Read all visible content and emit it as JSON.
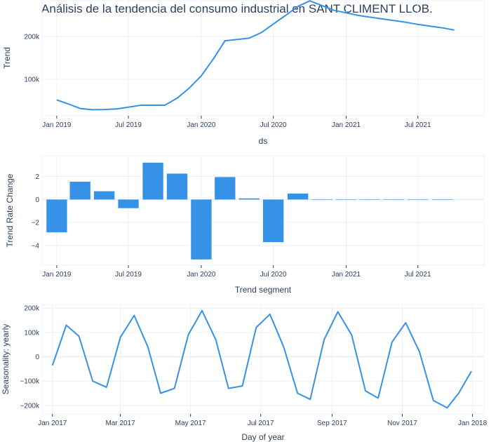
{
  "title": "Análisis de la tendencia del consumo industrial en SANT CLIMENT LLOB.",
  "colors": {
    "line": "#3592e6",
    "bar": "#3592e6",
    "text": "#2a3f5f",
    "grid": "#ebf0f8"
  },
  "chart_data": [
    {
      "type": "line",
      "name": "trend",
      "xlabel": "ds",
      "ylabel": "Trend",
      "x_type": "date",
      "xlim": [
        "2018-11-25",
        "2021-12-15"
      ],
      "ylim": [
        15000,
        285000
      ],
      "x_ticks": [
        {
          "value": "2019-01-01",
          "label": "Jan 2019"
        },
        {
          "value": "2019-07-01",
          "label": "Jul 2019"
        },
        {
          "value": "2020-01-01",
          "label": "Jan 2020"
        },
        {
          "value": "2020-07-01",
          "label": "Jul 2020"
        },
        {
          "value": "2021-01-01",
          "label": "Jan 2021"
        },
        {
          "value": "2021-07-01",
          "label": "Jul 2021"
        }
      ],
      "y_ticks": [
        {
          "value": 100000,
          "label": "100k"
        },
        {
          "value": 200000,
          "label": "200k"
        }
      ],
      "x": [
        "2019-01-01",
        "2019-02-01",
        "2019-03-01",
        "2019-04-01",
        "2019-05-01",
        "2019-06-01",
        "2019-07-01",
        "2019-08-01",
        "2019-09-01",
        "2019-10-01",
        "2019-11-01",
        "2019-12-01",
        "2020-01-01",
        "2020-02-01",
        "2020-03-01",
        "2020-04-01",
        "2020-05-01",
        "2020-06-01",
        "2020-07-01",
        "2020-08-01",
        "2020-09-01",
        "2020-10-01",
        "2020-11-01",
        "2020-12-01",
        "2021-01-01",
        "2021-02-01",
        "2021-03-01",
        "2021-04-01",
        "2021-05-01",
        "2021-06-01",
        "2021-07-01",
        "2021-08-01",
        "2021-09-01",
        "2021-10-01"
      ],
      "y": [
        52000,
        42000,
        32000,
        29000,
        29500,
        31000,
        35000,
        39500,
        39500,
        39500,
        56000,
        79000,
        108000,
        148000,
        190000,
        193000,
        196000,
        209000,
        229000,
        249000,
        270000,
        283000,
        272000,
        261000,
        255000,
        249000,
        245000,
        241000,
        237000,
        233000,
        228000,
        224000,
        220000,
        215000
      ]
    },
    {
      "type": "bar",
      "name": "trend rate change",
      "xlabel": "Trend segment",
      "ylabel": "Trend Rate Change",
      "x_type": "date",
      "xlim": [
        "2018-11-25",
        "2021-12-15"
      ],
      "ylim": [
        -5.7,
        3.8
      ],
      "x_ticks": [
        {
          "value": "2019-01-01",
          "label": "Jan 2019"
        },
        {
          "value": "2019-07-01",
          "label": "Jul 2019"
        },
        {
          "value": "2020-01-01",
          "label": "Jan 2020"
        },
        {
          "value": "2020-07-01",
          "label": "Jul 2020"
        },
        {
          "value": "2021-01-01",
          "label": "Jan 2021"
        },
        {
          "value": "2021-07-01",
          "label": "Jul 2021"
        }
      ],
      "y_ticks": [
        {
          "value": 2,
          "label": "2"
        },
        {
          "value": 0,
          "label": "0"
        },
        {
          "value": -2,
          "label": "−2"
        },
        {
          "value": -4,
          "label": "−4"
        }
      ],
      "bar_width_days": 52,
      "x": [
        "2019-01-01",
        "2019-03-01",
        "2019-05-01",
        "2019-07-01",
        "2019-09-01",
        "2019-11-01",
        "2020-01-01",
        "2020-03-01",
        "2020-05-01",
        "2020-07-01",
        "2020-09-01",
        "2020-11-01",
        "2021-01-01",
        "2021-03-01",
        "2021-05-01",
        "2021-07-01",
        "2021-09-01"
      ],
      "y": [
        -2.85,
        1.55,
        0.72,
        -0.75,
        3.2,
        2.25,
        -5.2,
        1.95,
        0.1,
        -3.7,
        0.52,
        0,
        0,
        0,
        0,
        0,
        0
      ]
    },
    {
      "type": "line",
      "name": "yearly seasonality",
      "xlabel": "Day of year",
      "ylabel": "Seasonality: yearly",
      "x_type": "date",
      "xlim": [
        "2016-12-23",
        "2018-01-11"
      ],
      "ylim": [
        -235000,
        215000
      ],
      "x_ticks": [
        {
          "value": "2017-01-01",
          "label": "Jan 2017"
        },
        {
          "value": "2017-03-01",
          "label": "Mar 2017"
        },
        {
          "value": "2017-05-01",
          "label": "May 2017"
        },
        {
          "value": "2017-07-01",
          "label": "Jul 2017"
        },
        {
          "value": "2017-09-01",
          "label": "Sep 2017"
        },
        {
          "value": "2017-11-01",
          "label": "Nov 2017"
        },
        {
          "value": "2018-01-01",
          "label": "Jan 2018"
        }
      ],
      "y_ticks": [
        {
          "value": 200000,
          "label": "200k"
        },
        {
          "value": 100000,
          "label": "100k"
        },
        {
          "value": 0,
          "label": "0"
        },
        {
          "value": -100000,
          "label": "−100k"
        },
        {
          "value": -200000,
          "label": "−200k"
        }
      ],
      "x": [
        "2017-01-01",
        "2017-01-13",
        "2017-01-24",
        "2017-02-05",
        "2017-02-17",
        "2017-03-01",
        "2017-03-13",
        "2017-03-25",
        "2017-04-05",
        "2017-04-17",
        "2017-04-29",
        "2017-05-11",
        "2017-05-23",
        "2017-06-03",
        "2017-06-15",
        "2017-06-27",
        "2017-07-09",
        "2017-07-21",
        "2017-08-02",
        "2017-08-13",
        "2017-08-25",
        "2017-09-06",
        "2017-09-18",
        "2017-09-30",
        "2017-10-11",
        "2017-10-23",
        "2017-11-04",
        "2017-11-16",
        "2017-11-28",
        "2017-12-10",
        "2017-12-20",
        "2017-12-31"
      ],
      "y": [
        -35000,
        130000,
        85000,
        -100000,
        -125000,
        80000,
        170000,
        40000,
        -150000,
        -130000,
        90000,
        190000,
        70000,
        -130000,
        -120000,
        120000,
        175000,
        40000,
        -150000,
        -175000,
        70000,
        185000,
        90000,
        -140000,
        -170000,
        60000,
        140000,
        20000,
        -180000,
        -210000,
        -150000,
        -60000
      ]
    }
  ]
}
